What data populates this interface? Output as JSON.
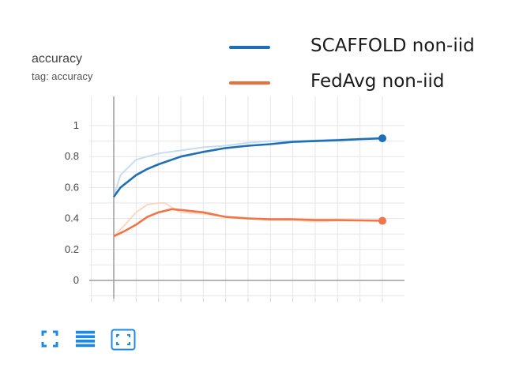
{
  "card": {
    "title": "accuracy",
    "subtitle": "tag: accuracy"
  },
  "legend": [
    {
      "label": "SCAFFOLD non-iid",
      "color": "#1f6fb5"
    },
    {
      "label": "FedAvg non-iid",
      "color": "#e8703a"
    }
  ],
  "toolbar": {
    "icons": [
      "fullscreen-icon",
      "data-table-icon",
      "fit-domain-icon"
    ],
    "icon_color": "#1e88e5"
  },
  "chart_data": {
    "type": "line",
    "title": "accuracy",
    "xlabel": "",
    "ylabel": "",
    "ylim": [
      0,
      1.08
    ],
    "xlim": [
      -1,
      12.5
    ],
    "grid": true,
    "legend_position": "top-right",
    "yticks": [
      "0",
      "0.2",
      "0.4",
      "0.6",
      "0.8",
      "1"
    ],
    "ytick_values": [
      0,
      0.2,
      0.4,
      0.6,
      0.8,
      1
    ],
    "series": [
      {
        "name": "SCAFFOLD non-iid",
        "color": "#1f6fb5",
        "raw_color": "#c5dcf3",
        "x": [
          0,
          0.3,
          1,
          1.5,
          2,
          3,
          4,
          5,
          6,
          7,
          8,
          9,
          10,
          11,
          12
        ],
        "values": [
          0.54,
          0.6,
          0.68,
          0.72,
          0.75,
          0.8,
          0.83,
          0.855,
          0.87,
          0.88,
          0.895,
          0.9,
          0.905,
          0.912,
          0.918
        ],
        "raw_values": [
          0.54,
          0.68,
          0.78,
          0.8,
          0.82,
          0.84,
          0.86,
          0.87,
          0.89,
          0.9,
          0.9,
          0.905,
          0.91,
          0.915,
          0.918
        ]
      },
      {
        "name": "FedAvg non-iid",
        "color": "#f07547",
        "raw_color": "#fbd7c5",
        "x": [
          0,
          0.5,
          1,
          1.5,
          2,
          2.3,
          2.6,
          3,
          4,
          5,
          6,
          7,
          8,
          9,
          10,
          11,
          12
        ],
        "values": [
          0.285,
          0.32,
          0.36,
          0.41,
          0.44,
          0.45,
          0.46,
          0.455,
          0.44,
          0.41,
          0.4,
          0.395,
          0.395,
          0.39,
          0.39,
          0.388,
          0.385
        ],
        "raw_values": [
          0.285,
          0.36,
          0.44,
          0.49,
          0.5,
          0.5,
          0.47,
          0.44,
          0.43,
          0.41,
          0.4,
          0.39,
          0.39,
          0.38,
          0.385,
          0.385,
          0.385
        ]
      }
    ]
  }
}
